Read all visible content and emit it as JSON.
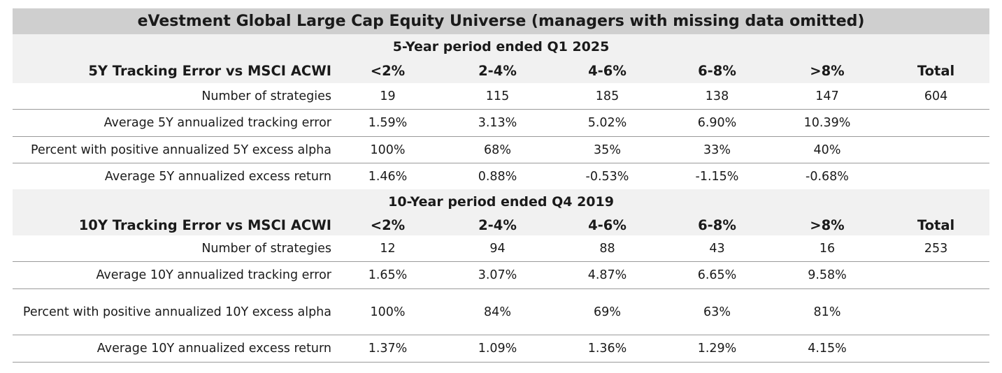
{
  "title": "eVestment Global Large Cap Equity Universe (managers with missing data omitted)",
  "sections": [
    {
      "period": "5-Year period ended Q1 2025",
      "header": {
        "label": "5Y Tracking Error vs MSCI ACWI",
        "cols": [
          "<2%",
          "2-4%",
          "4-6%",
          "6-8%",
          ">8%",
          "Total"
        ]
      },
      "rows": [
        {
          "label": "Number of strategies",
          "values": [
            "19",
            "115",
            "185",
            "138",
            "147",
            "604"
          ]
        },
        {
          "label": "Average 5Y annualized tracking error",
          "values": [
            "1.59%",
            "3.13%",
            "5.02%",
            "6.90%",
            "10.39%",
            ""
          ]
        },
        {
          "label": "Percent with positive annualized 5Y excess alpha",
          "values": [
            "100%",
            "68%",
            "35%",
            "33%",
            "40%",
            ""
          ]
        },
        {
          "label": "Average 5Y annualized excess return",
          "values": [
            "1.46%",
            "0.88%",
            "-0.53%",
            "-1.15%",
            "-0.68%",
            ""
          ]
        }
      ]
    },
    {
      "period": "10-Year period ended Q4 2019",
      "header": {
        "label": "10Y Tracking Error vs MSCI ACWI",
        "cols": [
          "<2%",
          "2-4%",
          "4-6%",
          "6-8%",
          ">8%",
          "Total"
        ]
      },
      "rows": [
        {
          "label": "Number of strategies",
          "values": [
            "12",
            "94",
            "88",
            "43",
            "16",
            "253"
          ]
        },
        {
          "label": "Average 10Y annualized tracking error",
          "values": [
            "1.65%",
            "3.07%",
            "4.87%",
            "6.65%",
            "9.58%",
            ""
          ]
        },
        {
          "label": "Percent with positive annualized 10Y excess alpha",
          "values": [
            "100%",
            "84%",
            "69%",
            "63%",
            "81%",
            ""
          ]
        },
        {
          "label": "Average 10Y annualized excess return",
          "values": [
            "1.37%",
            "1.09%",
            "1.36%",
            "1.29%",
            "4.15%",
            ""
          ]
        }
      ]
    }
  ]
}
